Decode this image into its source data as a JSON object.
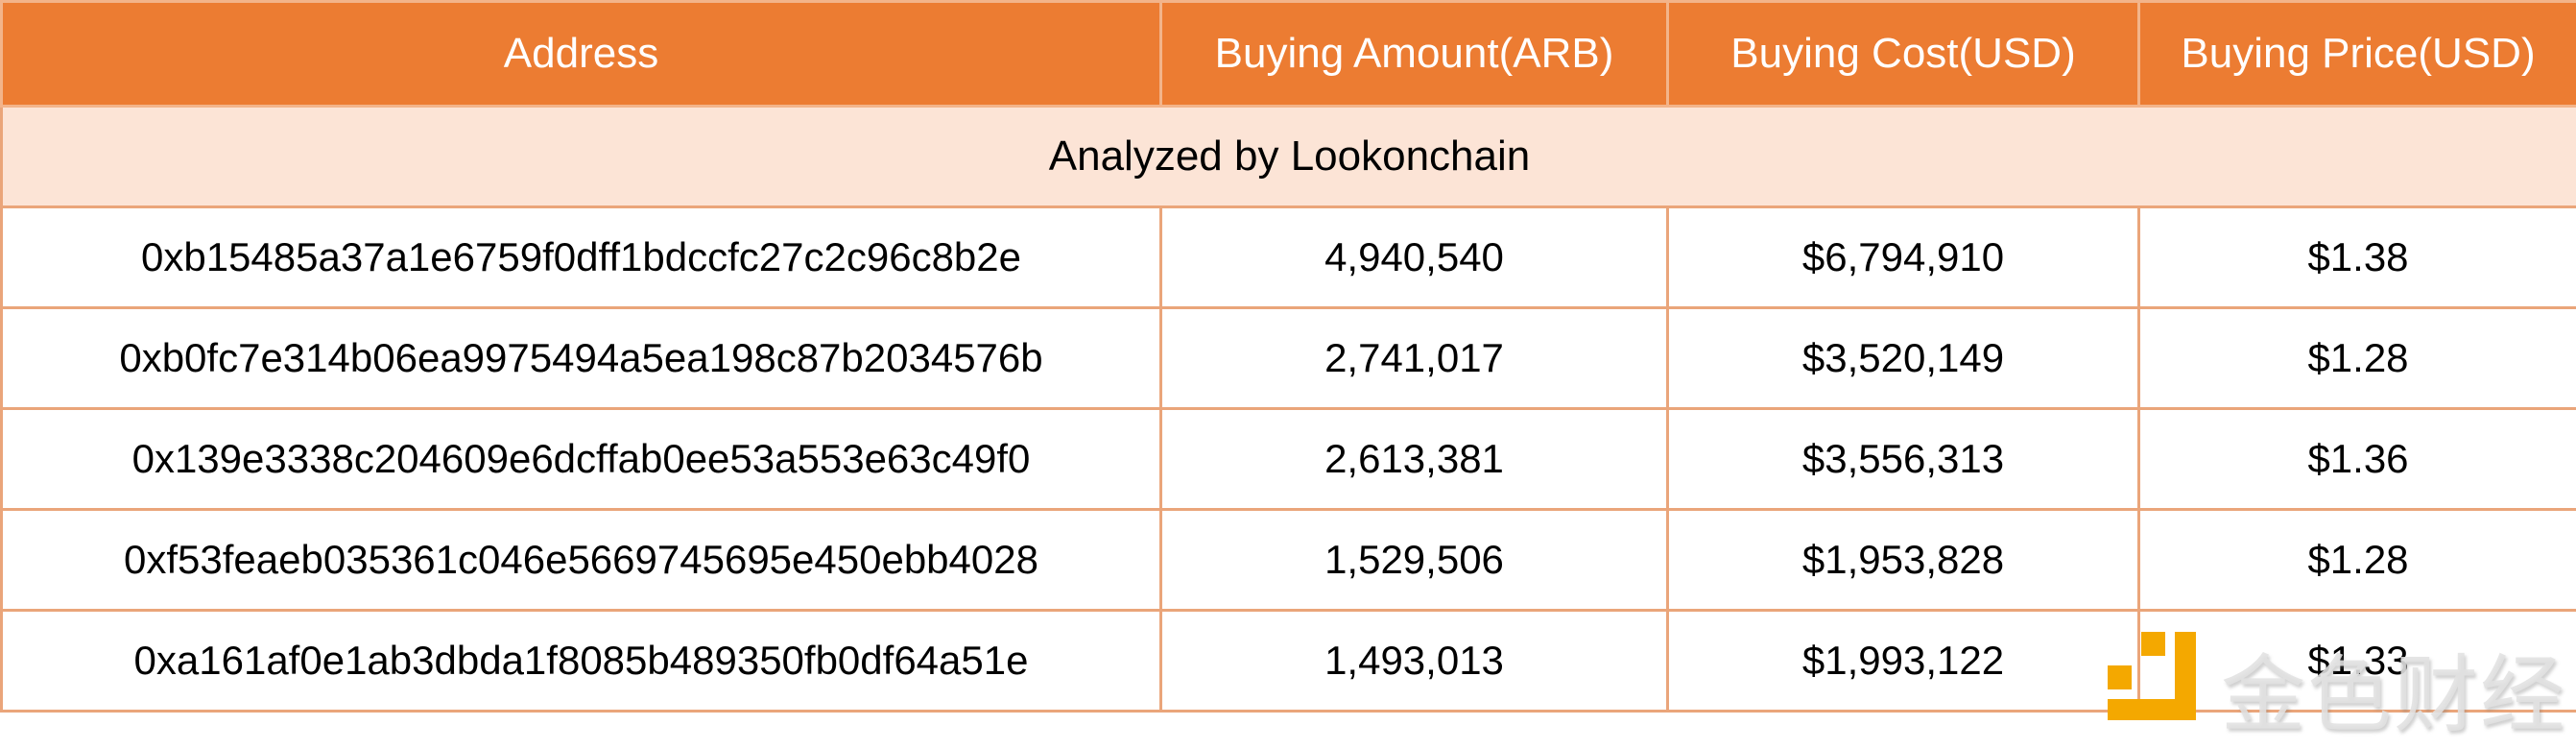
{
  "table": {
    "headers": [
      "Address",
      "Buying Amount(ARB)",
      "Buying Cost(USD)",
      "Buying Price(USD)"
    ],
    "banner": "Analyzed by Lookonchain",
    "rows": [
      {
        "address": "0xb15485a37a1e6759f0dff1bdccfc27c2c96c8b2e",
        "amount": "4,940,540",
        "cost": "$6,794,910",
        "price": "$1.38"
      },
      {
        "address": "0xb0fc7e314b06ea9975494a5ea198c87b2034576b",
        "amount": "2,741,017",
        "cost": "$3,520,149",
        "price": "$1.28"
      },
      {
        "address": "0x139e3338c204609e6dcffab0ee53a553e63c49f0",
        "amount": "2,613,381",
        "cost": "$3,556,313",
        "price": "$1.36"
      },
      {
        "address": "0xf53feaeb035361c046e5669745695e450ebb4028",
        "amount": "1,529,506",
        "cost": "$1,953,828",
        "price": "$1.28"
      },
      {
        "address": "0xa161af0e1ab3dbda1f8085b489350fb0df64a51e",
        "amount": "1,493,013",
        "cost": "$1,993,122",
        "price": "$1.33"
      }
    ]
  },
  "watermark": {
    "text": "金色财经",
    "logo_color": "#f4a800"
  },
  "colors": {
    "header_bg": "#ec7c32",
    "banner_bg": "#fce4d6",
    "border": "#eaa57a"
  }
}
